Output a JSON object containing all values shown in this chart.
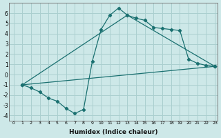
{
  "xlabel": "Humidex (Indice chaleur)",
  "ylabel": "",
  "background_color": "#cde8e8",
  "grid_color": "#aacfcf",
  "line_color": "#1a7070",
  "xlim": [
    -0.5,
    23.3
  ],
  "ylim": [
    -4.5,
    7.0
  ],
  "yticks": [
    -4,
    -3,
    -2,
    -1,
    0,
    1,
    2,
    3,
    4,
    5,
    6
  ],
  "xticks": [
    0,
    1,
    2,
    3,
    4,
    5,
    6,
    7,
    8,
    9,
    10,
    11,
    12,
    13,
    14,
    15,
    16,
    17,
    18,
    19,
    20,
    21,
    22,
    23
  ],
  "line1_x": [
    1,
    2,
    3,
    4,
    5,
    6,
    7,
    8,
    9,
    10,
    11,
    12,
    13,
    14,
    15,
    16,
    17,
    18,
    19,
    20,
    21,
    22,
    23
  ],
  "line1_y": [
    -1.0,
    -1.3,
    -1.7,
    -2.3,
    -2.6,
    -3.3,
    -3.8,
    -3.4,
    1.3,
    4.4,
    5.8,
    6.5,
    5.8,
    5.5,
    5.3,
    4.6,
    4.5,
    4.4,
    4.3,
    1.5,
    1.1,
    0.9,
    0.8
  ],
  "line2_x": [
    1,
    23
  ],
  "line2_y": [
    -1.0,
    0.8
  ],
  "line3_x": [
    1,
    13,
    23
  ],
  "line3_y": [
    -1.0,
    5.8,
    0.8
  ]
}
